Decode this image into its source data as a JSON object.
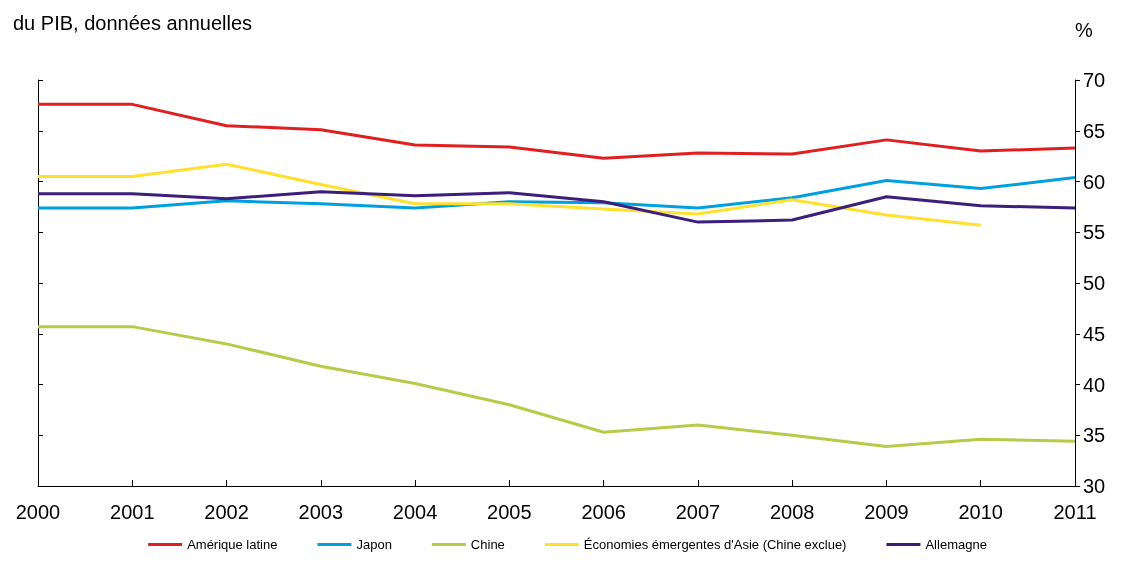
{
  "chart_data": {
    "type": "line",
    "title": "du PIB, données annuelles",
    "ylabel": "%",
    "categories": [
      "2000",
      "2001",
      "2002",
      "2003",
      "2004",
      "2005",
      "2006",
      "2007",
      "2008",
      "2009",
      "2010",
      "2011"
    ],
    "series": [
      {
        "name": "Amérique latine",
        "color": "#e02020",
        "values": [
          67.6,
          67.6,
          65.5,
          65.1,
          63.6,
          63.4,
          62.3,
          62.8,
          62.7,
          64.1,
          63.0,
          63.3
        ]
      },
      {
        "name": "Japon",
        "color": "#00a0e0",
        "values": [
          57.4,
          57.4,
          58.1,
          57.8,
          57.4,
          58.0,
          57.9,
          57.4,
          58.4,
          60.1,
          59.3,
          60.4
        ]
      },
      {
        "name": "Chine",
        "color": "#b5cc4a",
        "values": [
          45.7,
          45.7,
          44.0,
          41.8,
          40.1,
          38.0,
          35.3,
          36.0,
          35.0,
          33.9,
          34.6,
          34.4
        ]
      },
      {
        "name": "Économies émergentes d'Asie (Chine exclue)",
        "color": "#ffe030",
        "values": [
          60.5,
          60.5,
          61.7,
          59.7,
          57.8,
          57.8,
          57.3,
          56.8,
          58.2,
          56.7,
          55.7,
          null
        ]
      },
      {
        "name": "Allemagne",
        "color": "#3c1f7a",
        "values": [
          58.8,
          58.8,
          58.3,
          59.0,
          58.6,
          58.9,
          58.0,
          56.0,
          56.2,
          58.5,
          57.6,
          57.4
        ]
      }
    ],
    "ylim": [
      30,
      70
    ],
    "yticks": [
      30,
      35,
      40,
      45,
      50,
      55,
      60,
      65,
      70
    ],
    "grid": false,
    "legend": "bottom",
    "marker": "none",
    "line_style": "solid"
  }
}
